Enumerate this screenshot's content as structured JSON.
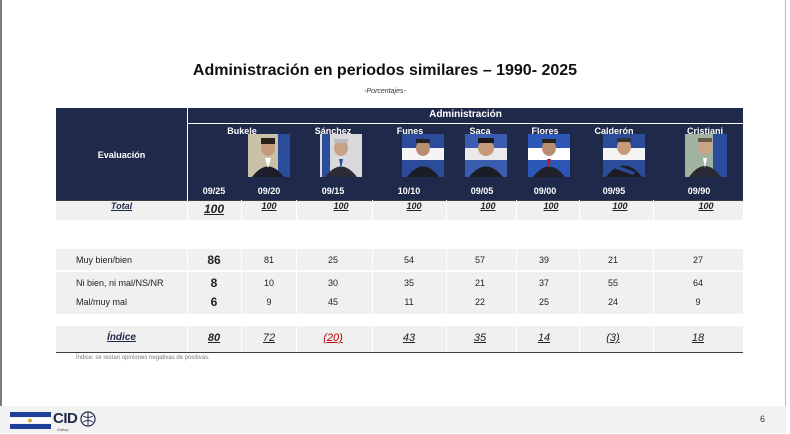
{
  "title": "Administración en periodos similares – 1990- 2025",
  "subtitle": "-Porcentajes-",
  "header": {
    "evaluacion": "Evaluación",
    "administracion": "Administración"
  },
  "presidents": [
    {
      "name": "Bukele",
      "periods": [
        "09/25",
        "09/20"
      ]
    },
    {
      "name": "Sánchez",
      "periods": [
        "09/15"
      ]
    },
    {
      "name": "Funes",
      "periods": [
        "10/10"
      ]
    },
    {
      "name": "Saca",
      "periods": [
        "09/05"
      ]
    },
    {
      "name": "Flores",
      "periods": [
        "09/00"
      ]
    },
    {
      "name": "Calderón",
      "periods": [
        "09/95"
      ]
    },
    {
      "name": "Cristiani",
      "periods": [
        "09/90"
      ]
    }
  ],
  "rows": {
    "total": {
      "label": "Total",
      "values": [
        "100",
        "100",
        "100",
        "100",
        "100",
        "100",
        "100",
        "100"
      ]
    },
    "muy_bien": {
      "label": "Muy bien/bien",
      "values": [
        "86",
        "81",
        "25",
        "54",
        "57",
        "39",
        "21",
        "27"
      ]
    },
    "ni_bien": {
      "label": "Ni bien, ni mal/NS/NR",
      "values": [
        "8",
        "10",
        "30",
        "35",
        "21",
        "37",
        "55",
        "64"
      ]
    },
    "mal": {
      "label": "Mal/muy mal",
      "values": [
        "6",
        "9",
        "45",
        "11",
        "22",
        "25",
        "24",
        "9"
      ]
    },
    "indice": {
      "label": "Índice",
      "values": [
        "80",
        "72",
        "(20)",
        "43",
        "35",
        "14",
        "(3)",
        "18"
      ]
    }
  },
  "footnote": "Índice: se restan opiniones negativas de positivas.",
  "footer": {
    "logo_text": "CID",
    "logo_subtext": "Gallup",
    "page_number": "6"
  },
  "colors": {
    "header_bg": "#1f2a4a",
    "stripe": "#f0f0f0",
    "negative": "#c00000",
    "flag_blue": "#1f3f99"
  }
}
